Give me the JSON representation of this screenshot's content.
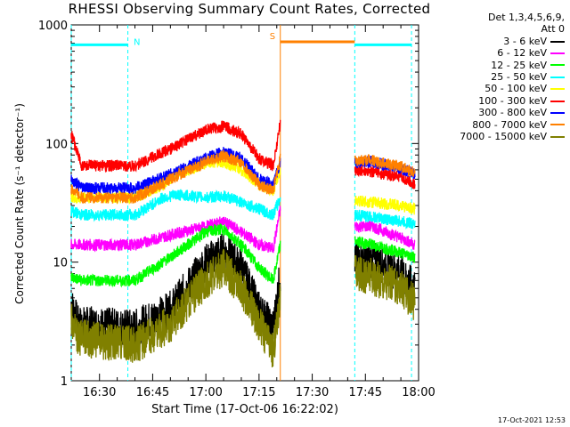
{
  "chart_data": {
    "type": "line",
    "title": "RHESSI Observing Summary Count Rates, Corrected",
    "xlabel": "Start Time (17-Oct-06 16:22:02)",
    "ylabel": "Corrected Count Rate (s⁻¹ detector⁻¹)",
    "y_scale": "log",
    "ylim": [
      1,
      1000
    ],
    "xlim": [
      "16:22:02",
      "18:00"
    ],
    "x_ticks": [
      "16:30",
      "16:45",
      "17:00",
      "17:15",
      "17:30",
      "17:45",
      "18:00"
    ],
    "y_ticks": [
      "1",
      "10",
      "100",
      "1000"
    ],
    "grid": false,
    "legend_placement": "right",
    "legend_header": [
      "Det 1,3,4,5,6,9,",
      "Att 0"
    ],
    "gaps": [
      [
        "17:21",
        "17:42"
      ]
    ],
    "series": [
      {
        "name": "3 - 6 keV",
        "color": "#000000",
        "points": [
          [
            "16:22",
            4.5
          ],
          [
            "16:24",
            3.0
          ],
          [
            "16:40",
            2.8
          ],
          [
            "16:50",
            4.0
          ],
          [
            "17:00",
            10.0
          ],
          [
            "17:05",
            12.5
          ],
          [
            "17:10",
            9.0
          ],
          [
            "17:15",
            4.0
          ],
          [
            "17:19",
            2.8
          ],
          [
            "17:21",
            8.0
          ],
          [
            "17:42",
            10.5
          ],
          [
            "17:47",
            10.5
          ],
          [
            "17:55",
            8.0
          ],
          [
            "17:59",
            6.0
          ]
        ]
      },
      {
        "name": "6 - 12 keV",
        "color": "#ff00ff",
        "points": [
          [
            "16:22",
            14.0
          ],
          [
            "16:25",
            14.0
          ],
          [
            "16:40",
            14.0
          ],
          [
            "16:50",
            17.0
          ],
          [
            "17:00",
            20.0
          ],
          [
            "17:05",
            22.0
          ],
          [
            "17:10",
            18.0
          ],
          [
            "17:15",
            14.0
          ],
          [
            "17:19",
            13.0
          ],
          [
            "17:21",
            28.0
          ],
          [
            "17:42",
            20.0
          ],
          [
            "17:47",
            20.0
          ],
          [
            "17:55",
            16.0
          ],
          [
            "17:59",
            14.0
          ]
        ]
      },
      {
        "name": "12 - 25 keV",
        "color": "#00ff00",
        "points": [
          [
            "16:22",
            7.5
          ],
          [
            "16:25",
            7.0
          ],
          [
            "16:40",
            7.0
          ],
          [
            "16:50",
            11.0
          ],
          [
            "17:00",
            18.0
          ],
          [
            "17:05",
            19.0
          ],
          [
            "17:10",
            14.0
          ],
          [
            "17:15",
            9.0
          ],
          [
            "17:19",
            7.0
          ],
          [
            "17:21",
            14.0
          ],
          [
            "17:42",
            15.0
          ],
          [
            "17:47",
            14.0
          ],
          [
            "17:55",
            12.0
          ],
          [
            "17:59",
            11.0
          ]
        ]
      },
      {
        "name": "25 - 50 keV",
        "color": "#00ffff",
        "points": [
          [
            "16:22",
            27.0
          ],
          [
            "16:25",
            25.0
          ],
          [
            "16:40",
            25.0
          ],
          [
            "16:48",
            35.0
          ],
          [
            "16:52",
            37.0
          ],
          [
            "17:00",
            35.0
          ],
          [
            "17:05",
            36.0
          ],
          [
            "17:10",
            32.0
          ],
          [
            "17:15",
            28.0
          ],
          [
            "17:19",
            25.0
          ],
          [
            "17:21",
            35.0
          ],
          [
            "17:42",
            25.0
          ],
          [
            "17:47",
            24.0
          ],
          [
            "17:55",
            22.0
          ],
          [
            "17:59",
            21.0
          ]
        ]
      },
      {
        "name": "50 - 100 keV",
        "color": "#ffff00",
        "points": [
          [
            "16:22",
            35.0
          ],
          [
            "16:25",
            35.0
          ],
          [
            "16:40",
            35.0
          ],
          [
            "16:48",
            45.0
          ],
          [
            "16:52",
            55.0
          ],
          [
            "17:00",
            68.0
          ],
          [
            "17:05",
            70.0
          ],
          [
            "17:10",
            60.0
          ],
          [
            "17:15",
            45.0
          ],
          [
            "17:19",
            40.0
          ],
          [
            "17:21",
            60.0
          ],
          [
            "17:42",
            33.0
          ],
          [
            "17:47",
            32.0
          ],
          [
            "17:55",
            30.0
          ],
          [
            "17:59",
            28.0
          ]
        ]
      },
      {
        "name": "100 - 300 keV",
        "color": "#ff0000",
        "points": [
          [
            "16:22",
            120.0
          ],
          [
            "16:25",
            65.0
          ],
          [
            "16:40",
            65.0
          ],
          [
            "16:50",
            90.0
          ],
          [
            "17:00",
            130.0
          ],
          [
            "17:05",
            140.0
          ],
          [
            "17:10",
            120.0
          ],
          [
            "17:15",
            75.0
          ],
          [
            "17:19",
            65.0
          ],
          [
            "17:21",
            150.0
          ],
          [
            "17:42",
            60.0
          ],
          [
            "17:47",
            58.0
          ],
          [
            "17:55",
            52.0
          ],
          [
            "17:59",
            45.0
          ]
        ]
      },
      {
        "name": "300 - 800 keV",
        "color": "#0000ff",
        "points": [
          [
            "16:22",
            50.0
          ],
          [
            "16:25",
            42.0
          ],
          [
            "16:40",
            42.0
          ],
          [
            "16:50",
            55.0
          ],
          [
            "17:00",
            75.0
          ],
          [
            "17:05",
            85.0
          ],
          [
            "17:10",
            75.0
          ],
          [
            "17:15",
            50.0
          ],
          [
            "17:19",
            45.0
          ],
          [
            "17:21",
            70.0
          ],
          [
            "17:42",
            70.0
          ],
          [
            "17:47",
            70.0
          ],
          [
            "17:55",
            62.0
          ],
          [
            "17:59",
            55.0
          ]
        ]
      },
      {
        "name": "800 - 7000 keV",
        "color": "#ff8000",
        "points": [
          [
            "16:22",
            42.0
          ],
          [
            "16:25",
            35.0
          ],
          [
            "16:40",
            35.0
          ],
          [
            "16:50",
            50.0
          ],
          [
            "17:00",
            70.0
          ],
          [
            "17:05",
            78.0
          ],
          [
            "17:10",
            70.0
          ],
          [
            "17:15",
            45.0
          ],
          [
            "17:19",
            40.0
          ],
          [
            "17:21",
            75.0
          ],
          [
            "17:42",
            72.0
          ],
          [
            "17:47",
            72.0
          ],
          [
            "17:55",
            64.0
          ],
          [
            "17:59",
            58.0
          ]
        ]
      },
      {
        "name": "7000 - 15000 keV",
        "color": "#808000",
        "points": [
          [
            "16:22",
            3.5
          ],
          [
            "16:24",
            2.3
          ],
          [
            "16:40",
            2.0
          ],
          [
            "16:50",
            3.0
          ],
          [
            "17:00",
            7.0
          ],
          [
            "17:05",
            9.0
          ],
          [
            "17:10",
            6.0
          ],
          [
            "17:15",
            3.0
          ],
          [
            "17:19",
            1.8
          ],
          [
            "17:21",
            5.0
          ],
          [
            "17:42",
            8.0
          ],
          [
            "17:47",
            7.5
          ],
          [
            "17:55",
            6.0
          ],
          [
            "17:59",
            4.5
          ]
        ]
      }
    ],
    "markers": [
      {
        "label": "N",
        "color": "#00ffff",
        "segments": [
          [
            "16:22:02",
            "16:38"
          ],
          [
            "17:42",
            "17:58"
          ]
        ],
        "level": 680
      },
      {
        "label": "S",
        "color": "#ff8000",
        "segments": [
          [
            "17:21",
            "17:42"
          ]
        ],
        "level": 720
      }
    ],
    "vlines": [
      {
        "time": "16:22:02",
        "color": "#00ffff",
        "style": "dashed"
      },
      {
        "time": "16:38",
        "color": "#00ffff",
        "style": "dashed"
      },
      {
        "time": "17:21",
        "color": "#ff8000",
        "style": "solid"
      },
      {
        "time": "17:42",
        "color": "#00ffff",
        "style": "dashed"
      },
      {
        "time": "17:58",
        "color": "#00ffff",
        "style": "dashed"
      }
    ]
  },
  "footer": {
    "timestamp": "17-Oct-2021 12:53"
  }
}
